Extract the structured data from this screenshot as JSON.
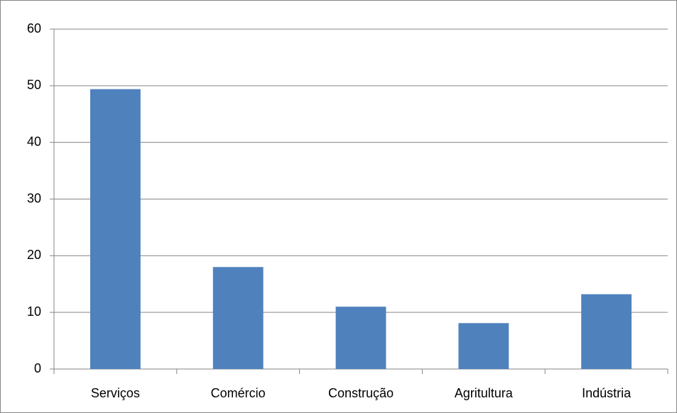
{
  "chart_data": {
    "type": "bar",
    "categories": [
      "Serviços",
      "Comércio",
      "Construção",
      "Agritultura",
      "Indústria"
    ],
    "values": [
      49.4,
      18,
      11,
      8.1,
      13.2
    ],
    "color": "#4f81bd",
    "ylim": [
      0,
      60
    ],
    "yticks": [
      0,
      10,
      20,
      30,
      40,
      50,
      60
    ],
    "grid": true
  }
}
